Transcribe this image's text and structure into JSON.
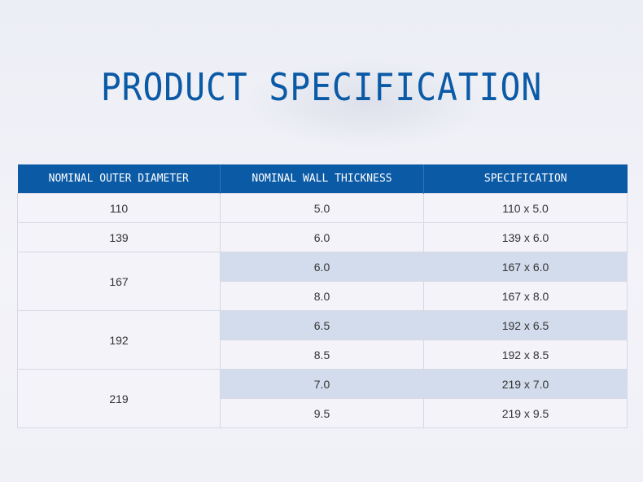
{
  "title": "PRODUCT SPECIFICATION",
  "table": {
    "headers": [
      "NOMINAL OUTER DIAMETER",
      "NOMINAL WALL THICKNESS",
      "SPECIFICATION"
    ],
    "groups": [
      {
        "diameter": "110",
        "rows": [
          {
            "thickness": "5.0",
            "spec": "110 x 5.0"
          }
        ]
      },
      {
        "diameter": "139",
        "rows": [
          {
            "thickness": "6.0",
            "spec": "139 x 6.0"
          }
        ]
      },
      {
        "diameter": "167",
        "rows": [
          {
            "thickness": "6.0",
            "spec": "167 x 6.0"
          },
          {
            "thickness": "8.0",
            "spec": "167 x 8.0"
          }
        ]
      },
      {
        "diameter": "192",
        "rows": [
          {
            "thickness": "6.5",
            "spec": "192 x 6.5"
          },
          {
            "thickness": "8.5",
            "spec": "192 x 8.5"
          }
        ]
      },
      {
        "diameter": "219",
        "rows": [
          {
            "thickness": "7.0",
            "spec": "219 x 7.0"
          },
          {
            "thickness": "9.5",
            "spec": "219 x 9.5"
          }
        ]
      }
    ]
  },
  "colors": {
    "accent": "#0b5aa6",
    "header_text": "#ffffff",
    "highlight_row": "#d3dcec",
    "row_bg": "#f3f3f9"
  }
}
